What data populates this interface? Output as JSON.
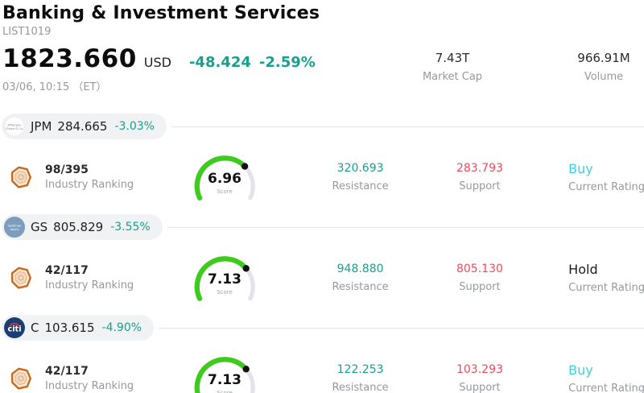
{
  "header": {
    "title": "Banking & Investment Services",
    "list_id": "LIST1019",
    "price": "1823.660",
    "currency": "USD",
    "change_value": "-48.424",
    "change_pct": "-2.59%",
    "timestamp": "03/06, 10:15 （ET）",
    "stats": [
      {
        "value": "7.43T",
        "label": "Market Cap"
      },
      {
        "value": "966.91M",
        "label": "Volume"
      }
    ]
  },
  "labels": {
    "industry_ranking": "Industry Ranking",
    "score": "Score",
    "resistance": "Resistance",
    "support": "Support",
    "current_rating": "Current Rating"
  },
  "colors": {
    "teal": "#17a08c",
    "red": "#f4485b",
    "cyan": "#3dd1df",
    "gauge_fill": "#3ecb1e",
    "gauge_track": "#e3e3eb",
    "gauge_dot": "#111111",
    "pill_bg": "#f1f2f4",
    "rule": "#e1e1e9"
  },
  "stocks": [
    {
      "ticker": "JPM",
      "price": "284.665",
      "change": "-3.03%",
      "rank": "98/395",
      "score": 6.96,
      "score_label": "6.96",
      "resistance": "320.693",
      "support": "283.793",
      "rating": "Buy",
      "rating_color": "#3dd1df",
      "logo": {
        "name": "jpmorgan-chase",
        "type": "wordmark",
        "bg": "#fdfdfd",
        "border": "#e9e9ee",
        "text_color": "#8b8b8b",
        "lines": [
          "JPMorgan",
          "Chase & Co."
        ]
      }
    },
    {
      "ticker": "GS",
      "price": "805.829",
      "change": "-3.55%",
      "rank": "42/117",
      "score": 7.13,
      "score_label": "7.13",
      "resistance": "948.880",
      "support": "805.130",
      "rating": "Hold",
      "rating_color": "#1e1e1e",
      "logo": {
        "name": "goldman-sachs",
        "type": "wordmark",
        "bg": "#7e9dbe",
        "border": "#7e9dbe",
        "text_color": "#ffffff",
        "lines": [
          "Goldman",
          "Sachs"
        ]
      }
    },
    {
      "ticker": "C",
      "price": "103.615",
      "change": "-4.90%",
      "rank": "42/117",
      "score": 7.13,
      "score_label": "7.13",
      "resistance": "122.253",
      "support": "103.293",
      "rating": "Buy",
      "rating_color": "#3dd1df",
      "logo": {
        "name": "citi",
        "type": "citi",
        "bg": "#1d3e74",
        "text_color": "#ffffff",
        "text": "citi",
        "arc_color": "#db3a34"
      }
    }
  ]
}
